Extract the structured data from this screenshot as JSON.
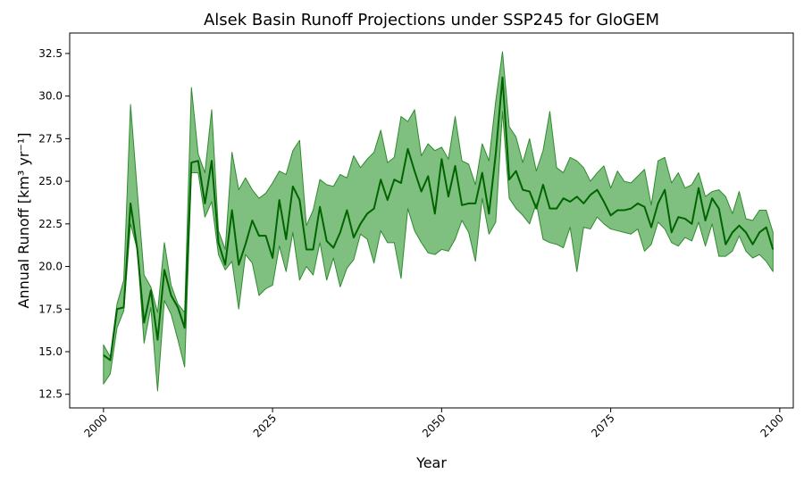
{
  "chart_data": {
    "type": "area",
    "title": "Alsek Basin Runoff Projections under SSP245 for GloGEM",
    "xlabel": "Year",
    "ylabel": "Annual Runoff [km³ yr⁻¹]",
    "xlim": [
      1995,
      2102
    ],
    "ylim": [
      11.7,
      33.7
    ],
    "xticks": [
      2000,
      2025,
      2050,
      2075,
      2100
    ],
    "yticks": [
      12.5,
      15.0,
      17.5,
      20.0,
      22.5,
      25.0,
      27.5,
      30.0,
      32.5
    ],
    "grid": false,
    "colors": {
      "line": "#006400",
      "band_fill": "#7fbf7f",
      "band_edge": "#2e8b2e"
    },
    "x": [
      2000,
      2001,
      2002,
      2003,
      2004,
      2005,
      2006,
      2007,
      2008,
      2009,
      2010,
      2011,
      2012,
      2013,
      2014,
      2015,
      2016,
      2017,
      2018,
      2019,
      2020,
      2021,
      2022,
      2023,
      2024,
      2025,
      2026,
      2027,
      2028,
      2029,
      2030,
      2031,
      2032,
      2033,
      2034,
      2035,
      2036,
      2037,
      2038,
      2039,
      2040,
      2041,
      2042,
      2043,
      2044,
      2045,
      2046,
      2047,
      2048,
      2049,
      2050,
      2051,
      2052,
      2053,
      2054,
      2055,
      2056,
      2057,
      2058,
      2059,
      2060,
      2061,
      2062,
      2063,
      2064,
      2065,
      2066,
      2067,
      2068,
      2069,
      2070,
      2071,
      2072,
      2073,
      2074,
      2075,
      2076,
      2077,
      2078,
      2079,
      2080,
      2081,
      2082,
      2083,
      2084,
      2085,
      2086,
      2087,
      2088,
      2089,
      2090,
      2091,
      2092,
      2093,
      2094,
      2095,
      2096,
      2097,
      2098,
      2099
    ],
    "series": [
      {
        "role": "mean",
        "values": [
          14.8,
          14.5,
          17.5,
          17.6,
          23.7,
          21.0,
          16.7,
          18.6,
          15.7,
          19.8,
          18.3,
          17.6,
          16.4,
          26.1,
          26.2,
          23.7,
          26.2,
          21.4,
          20.1,
          23.3,
          20.1,
          21.3,
          22.7,
          21.8,
          21.8,
          20.5,
          23.9,
          21.6,
          24.7,
          23.9,
          21.0,
          21.0,
          23.5,
          21.5,
          21.1,
          22.0,
          23.3,
          21.7,
          22.5,
          23.1,
          23.4,
          25.1,
          23.9,
          25.1,
          24.9,
          26.9,
          25.6,
          24.4,
          25.3,
          23.1,
          26.3,
          24.1,
          25.9,
          23.6,
          23.7,
          23.7,
          25.5,
          23.1,
          26.6,
          31.1,
          25.1,
          25.6,
          24.5,
          24.4,
          23.4,
          24.8,
          23.4,
          23.4,
          24.0,
          23.8,
          24.1,
          23.7,
          24.2,
          24.5,
          23.8,
          23.0,
          23.3,
          23.3,
          23.4,
          23.7,
          23.5,
          22.3,
          23.7,
          24.5,
          22.0,
          22.9,
          22.8,
          22.5,
          24.6,
          22.7,
          24.0,
          23.4,
          21.3,
          22.0,
          22.4,
          22.0,
          21.3,
          22.0,
          22.3,
          21.0
        ]
      },
      {
        "role": "upper",
        "values": [
          15.4,
          14.7,
          17.8,
          19.2,
          29.5,
          24.4,
          19.5,
          18.8,
          17.3,
          21.4,
          18.9,
          17.8,
          17.3,
          30.5,
          26.6,
          25.5,
          29.2,
          22.1,
          21.0,
          26.7,
          24.5,
          25.2,
          24.5,
          24.0,
          24.3,
          24.9,
          25.6,
          25.4,
          26.8,
          27.4,
          22.4,
          23.3,
          25.1,
          24.8,
          24.7,
          25.4,
          25.2,
          26.5,
          25.8,
          26.3,
          26.7,
          28.0,
          26.1,
          26.4,
          28.8,
          28.5,
          29.2,
          26.5,
          27.2,
          26.8,
          27.0,
          26.3,
          28.8,
          26.2,
          26.0,
          24.8,
          27.2,
          26.2,
          29.7,
          32.6,
          28.2,
          27.6,
          26.1,
          27.5,
          25.6,
          26.8,
          29.1,
          25.8,
          25.5,
          26.4,
          26.2,
          25.8,
          25.0,
          25.5,
          25.9,
          24.6,
          25.6,
          25.0,
          24.9,
          25.3,
          25.7,
          23.6,
          26.2,
          26.4,
          24.9,
          25.5,
          24.6,
          24.8,
          25.5,
          24.1,
          24.4,
          24.5,
          24.1,
          23.1,
          24.4,
          22.8,
          22.7,
          23.3,
          23.3,
          22.0
        ]
      },
      {
        "role": "lower",
        "values": [
          13.1,
          13.7,
          16.4,
          17.4,
          22.5,
          21.0,
          15.5,
          17.6,
          12.7,
          18.0,
          17.2,
          15.7,
          14.1,
          25.5,
          25.5,
          22.9,
          23.8,
          20.7,
          19.8,
          20.3,
          17.5,
          20.7,
          20.2,
          18.3,
          18.7,
          18.9,
          21.2,
          19.7,
          22.0,
          19.2,
          20.0,
          19.5,
          21.4,
          19.2,
          20.5,
          18.8,
          19.9,
          20.4,
          21.9,
          21.6,
          20.2,
          22.1,
          21.4,
          21.4,
          19.3,
          23.4,
          22.1,
          21.4,
          20.8,
          20.7,
          21.0,
          20.9,
          21.6,
          22.7,
          22.0,
          20.3,
          24.0,
          21.9,
          22.6,
          29.1,
          24.0,
          23.4,
          23.0,
          22.5,
          23.7,
          21.6,
          21.4,
          21.3,
          21.1,
          22.3,
          19.7,
          22.3,
          22.2,
          22.9,
          22.5,
          22.2,
          22.1,
          22.0,
          21.9,
          22.2,
          20.9,
          21.3,
          22.6,
          22.2,
          21.4,
          21.2,
          21.7,
          21.5,
          22.6,
          21.2,
          22.5,
          20.6,
          20.6,
          20.9,
          21.8,
          20.9,
          20.5,
          20.7,
          20.3,
          19.7
        ]
      }
    ]
  }
}
